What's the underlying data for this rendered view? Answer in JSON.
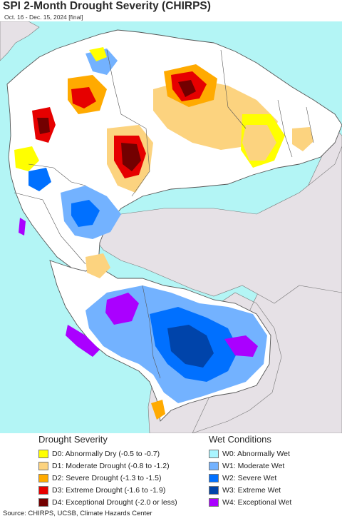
{
  "header": {
    "title": "SPI 2-Month Drought Severity (CHIRPS)",
    "subtitle": "Oct. 16 - Dec. 15, 2024 [final]"
  },
  "map": {
    "ocean_color": "#b3f5f5",
    "land_color": "#ffffff",
    "outside_region_color": "#e6e1e6",
    "border_color": "#555555"
  },
  "legend": {
    "drought": {
      "heading": "Drought Severity",
      "items": [
        {
          "label": "D0: Abnormally Dry (-0.5 to -0.7)",
          "color": "#ffff00"
        },
        {
          "label": "D1: Moderate Drought (-0.8 to -1.2)",
          "color": "#fcd37f"
        },
        {
          "label": "D2: Severe Drought (-1.3 to -1.5)",
          "color": "#ffaa00"
        },
        {
          "label": "D3: Extreme Drought (-1.6 to -1.9)",
          "color": "#e60000"
        },
        {
          "label": "D4: Exceptional Drought (-2.0 or less)",
          "color": "#730000"
        }
      ]
    },
    "wet": {
      "heading": "Wet Conditions",
      "items": [
        {
          "label": "W0: Abnormally Wet",
          "color": "#aaf5ff"
        },
        {
          "label": "W1: Moderate Wet",
          "color": "#73b2ff"
        },
        {
          "label": "W2: Severe Wet",
          "color": "#0070ff"
        },
        {
          "label": "W3: Extreme Wet",
          "color": "#0044aa"
        },
        {
          "label": "W4: Exceptional Wet",
          "color": "#aa00ff"
        }
      ]
    }
  },
  "footer": {
    "source": "Source: CHIRPS, UCSB, Climate Hazards Center"
  }
}
